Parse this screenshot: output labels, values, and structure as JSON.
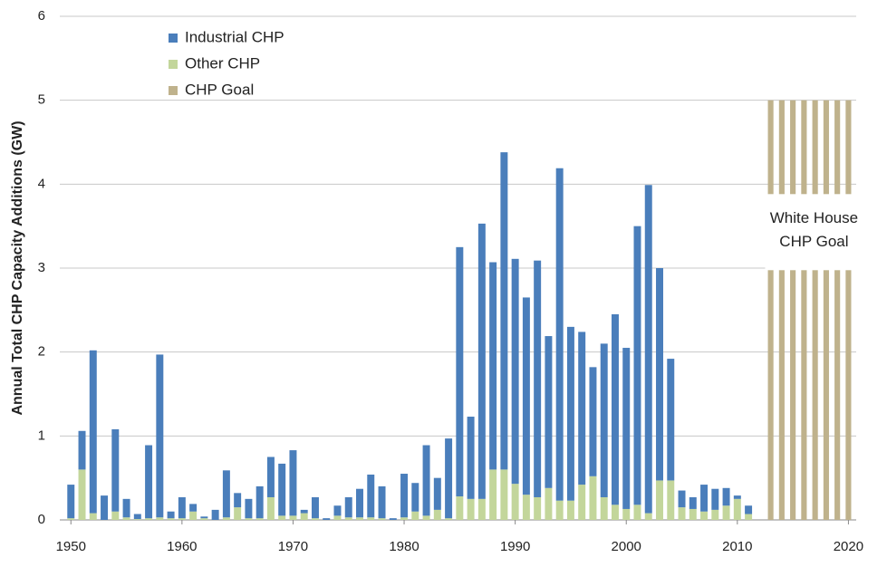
{
  "chart_data": {
    "type": "stacked-bar",
    "ylabel": "Annual Total CHP Capacity Additions (GW)",
    "x": [
      1950,
      1951,
      1952,
      1953,
      1954,
      1955,
      1956,
      1957,
      1958,
      1959,
      1960,
      1961,
      1962,
      1963,
      1964,
      1965,
      1966,
      1967,
      1968,
      1969,
      1970,
      1971,
      1972,
      1973,
      1974,
      1975,
      1976,
      1977,
      1978,
      1979,
      1980,
      1981,
      1982,
      1983,
      1984,
      1985,
      1986,
      1987,
      1988,
      1989,
      1990,
      1991,
      1992,
      1993,
      1994,
      1995,
      1996,
      1997,
      1998,
      1999,
      2000,
      2001,
      2002,
      2003,
      2004,
      2005,
      2006,
      2007,
      2008,
      2009,
      2010,
      2011,
      2012,
      2013,
      2014,
      2015,
      2016,
      2017,
      2018,
      2019,
      2020
    ],
    "series": [
      {
        "name": "Other CHP",
        "color": "#c3d69b",
        "values": [
          0.02,
          0.6,
          0.08,
          0,
          0.1,
          0.03,
          0.01,
          0.02,
          0.03,
          0.02,
          0.02,
          0.1,
          0.02,
          0,
          0.03,
          0.15,
          0.02,
          0.02,
          0.27,
          0.05,
          0.05,
          0.08,
          0.02,
          0,
          0.05,
          0.03,
          0.03,
          0.03,
          0.02,
          0,
          0.03,
          0.1,
          0.05,
          0.12,
          0.02,
          0.28,
          0.25,
          0.25,
          0.6,
          0.6,
          0.43,
          0.3,
          0.27,
          0.38,
          0.23,
          0.23,
          0.42,
          0.52,
          0.27,
          0.18,
          0.13,
          0.18,
          0.08,
          0.47,
          0.47,
          0.15,
          0.13,
          0.1,
          0.12,
          0.17,
          0.25,
          0.07,
          null,
          null,
          null,
          null,
          null,
          null,
          null,
          null,
          null
        ]
      },
      {
        "name": "Industrial CHP",
        "color": "#4a7ebb",
        "values": [
          0.4,
          0.46,
          1.94,
          0.29,
          0.98,
          0.22,
          0.06,
          0.87,
          1.94,
          0.08,
          0.25,
          0.09,
          0.02,
          0.12,
          0.56,
          0.17,
          0.23,
          0.38,
          0.48,
          0.62,
          0.78,
          0.04,
          0.25,
          0.02,
          0.12,
          0.24,
          0.34,
          0.51,
          0.38,
          0.02,
          0.52,
          0.34,
          0.84,
          0.38,
          0.95,
          2.97,
          0.98,
          3.28,
          2.47,
          3.78,
          2.68,
          2.35,
          2.82,
          1.81,
          3.96,
          2.07,
          1.82,
          1.3,
          1.83,
          2.27,
          1.92,
          3.32,
          3.91,
          2.53,
          1.45,
          0.2,
          0.14,
          0.32,
          0.25,
          0.21,
          0.04,
          0.1,
          null,
          null,
          null,
          null,
          null,
          null,
          null,
          null,
          null
        ]
      },
      {
        "name": "CHP Goal",
        "color": "#bfb28c",
        "values": [
          null,
          null,
          null,
          null,
          null,
          null,
          null,
          null,
          null,
          null,
          null,
          null,
          null,
          null,
          null,
          null,
          null,
          null,
          null,
          null,
          null,
          null,
          null,
          null,
          null,
          null,
          null,
          null,
          null,
          null,
          null,
          null,
          null,
          null,
          null,
          null,
          null,
          null,
          null,
          null,
          null,
          null,
          null,
          null,
          null,
          null,
          null,
          null,
          null,
          null,
          null,
          null,
          null,
          null,
          null,
          null,
          null,
          null,
          null,
          null,
          null,
          null,
          null,
          5,
          5,
          5,
          5,
          5,
          5,
          5,
          5
        ]
      }
    ],
    "legend_order": [
      "Industrial CHP",
      "Other CHP",
      "CHP Goal"
    ],
    "annotation": [
      "White House",
      "CHP Goal"
    ],
    "xlim": [
      1949,
      2020.7
    ],
    "xticks": [
      1950,
      1960,
      1970,
      1980,
      1990,
      2000,
      2010,
      2020
    ],
    "ylim": [
      0,
      6
    ],
    "yticks": [
      0,
      1,
      2,
      3,
      4,
      5,
      6
    ],
    "grid": true
  }
}
